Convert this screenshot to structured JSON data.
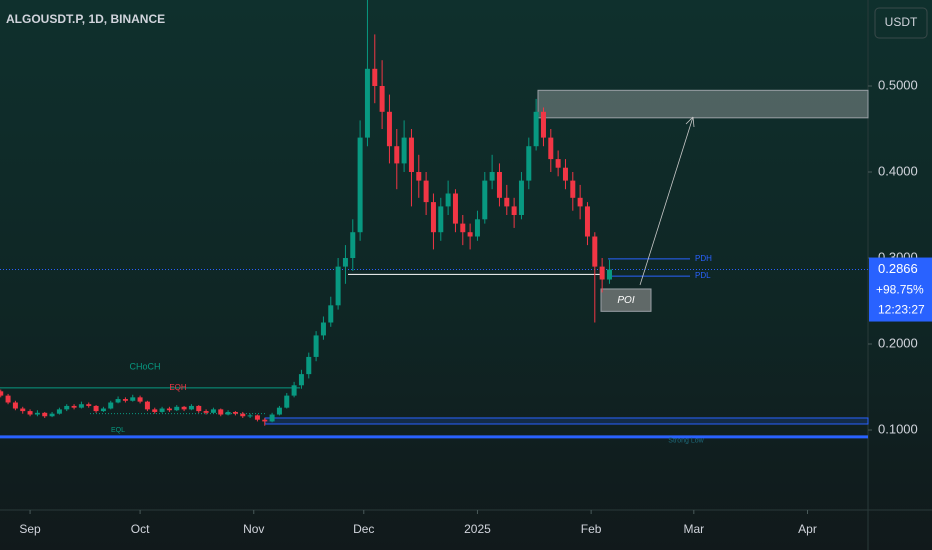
{
  "chart_data": {
    "type": "candlestick",
    "title": "ALGOUSDT.P, 1D, BINANCE",
    "currency": "USDT",
    "up_color": "#089981",
    "down_color": "#f23645",
    "xlim": [
      -8.2,
      228.5
    ],
    "xticks": [
      {
        "value": 0,
        "label": "Sep"
      },
      {
        "value": 30,
        "label": "Oct"
      },
      {
        "value": 61,
        "label": "Nov"
      },
      {
        "value": 91,
        "label": "Dec"
      },
      {
        "value": 122,
        "label": "2025"
      },
      {
        "value": 153,
        "label": "Feb"
      },
      {
        "value": 181,
        "label": "Mar"
      },
      {
        "value": 212,
        "label": "Apr"
      }
    ],
    "ylim": [
      0.007,
      0.6
    ],
    "yticks": [
      {
        "value": 0.1,
        "label": "0.1000"
      },
      {
        "value": 0.2,
        "label": "0.2000"
      },
      {
        "value": 0.3,
        "label": "0.3000"
      },
      {
        "value": 0.4,
        "label": "0.4000"
      },
      {
        "value": 0.5,
        "label": "0.5000"
      }
    ],
    "last_price": {
      "value": 0.2866,
      "label": "0.2866",
      "change": {
        "value": 98.75,
        "label": "+98.75%"
      },
      "countdown": "12:23:27"
    },
    "candles": {
      "x": [
        -8,
        -6,
        -4,
        -2,
        0,
        2,
        4,
        6,
        8,
        10,
        12,
        14,
        16,
        18,
        20,
        22,
        24,
        26,
        28,
        30,
        32,
        34,
        36,
        38,
        40,
        42,
        44,
        46,
        48,
        50,
        52,
        54,
        56,
        58,
        60,
        62,
        64,
        66,
        68,
        70,
        72,
        74,
        76,
        78,
        80,
        82,
        84,
        86,
        88,
        90,
        92,
        94,
        96,
        98,
        100,
        102,
        104,
        106,
        108,
        110,
        112,
        114,
        116,
        118,
        120,
        122,
        124,
        126,
        128,
        130,
        132,
        134,
        136,
        138,
        140,
        142,
        144,
        146,
        148,
        150,
        152,
        154,
        156,
        158
      ],
      "open": [
        0.145,
        0.14,
        0.132,
        0.125,
        0.122,
        0.118,
        0.12,
        0.116,
        0.119,
        0.124,
        0.128,
        0.126,
        0.13,
        0.128,
        0.122,
        0.125,
        0.132,
        0.136,
        0.134,
        0.138,
        0.133,
        0.124,
        0.121,
        0.125,
        0.123,
        0.127,
        0.124,
        0.128,
        0.122,
        0.12,
        0.124,
        0.118,
        0.121,
        0.119,
        0.116,
        0.117,
        0.112,
        0.11,
        0.118,
        0.126,
        0.14,
        0.152,
        0.165,
        0.185,
        0.21,
        0.225,
        0.245,
        0.29,
        0.3,
        0.33,
        0.44,
        0.52,
        0.5,
        0.47,
        0.43,
        0.41,
        0.44,
        0.4,
        0.39,
        0.365,
        0.33,
        0.36,
        0.375,
        0.34,
        0.33,
        0.325,
        0.345,
        0.39,
        0.4,
        0.37,
        0.36,
        0.35,
        0.39,
        0.43,
        0.47,
        0.44,
        0.415,
        0.405,
        0.39,
        0.37,
        0.36,
        0.325,
        0.29,
        0.275
      ],
      "high": [
        0.147,
        0.142,
        0.134,
        0.127,
        0.124,
        0.123,
        0.121,
        0.121,
        0.126,
        0.13,
        0.13,
        0.133,
        0.132,
        0.129,
        0.127,
        0.134,
        0.139,
        0.138,
        0.141,
        0.14,
        0.134,
        0.126,
        0.127,
        0.127,
        0.129,
        0.128,
        0.13,
        0.129,
        0.124,
        0.126,
        0.125,
        0.123,
        0.122,
        0.121,
        0.119,
        0.118,
        0.114,
        0.12,
        0.128,
        0.143,
        0.156,
        0.17,
        0.19,
        0.215,
        0.232,
        0.255,
        0.3,
        0.315,
        0.345,
        0.46,
        0.6,
        0.56,
        0.53,
        0.49,
        0.45,
        0.46,
        0.45,
        0.42,
        0.4,
        0.375,
        0.37,
        0.39,
        0.38,
        0.35,
        0.34,
        0.355,
        0.4,
        0.42,
        0.41,
        0.385,
        0.37,
        0.4,
        0.44,
        0.485,
        0.475,
        0.45,
        0.425,
        0.415,
        0.4,
        0.385,
        0.365,
        0.33,
        0.3,
        0.298
      ],
      "low": [
        0.138,
        0.13,
        0.123,
        0.119,
        0.116,
        0.116,
        0.114,
        0.115,
        0.118,
        0.122,
        0.124,
        0.125,
        0.126,
        0.12,
        0.121,
        0.124,
        0.131,
        0.132,
        0.133,
        0.131,
        0.122,
        0.119,
        0.12,
        0.121,
        0.122,
        0.122,
        0.123,
        0.12,
        0.118,
        0.119,
        0.116,
        0.117,
        0.117,
        0.114,
        0.114,
        0.11,
        0.105,
        0.109,
        0.117,
        0.125,
        0.138,
        0.148,
        0.16,
        0.18,
        0.205,
        0.22,
        0.24,
        0.27,
        0.285,
        0.32,
        0.43,
        0.48,
        0.45,
        0.41,
        0.38,
        0.4,
        0.36,
        0.37,
        0.35,
        0.31,
        0.32,
        0.35,
        0.33,
        0.315,
        0.31,
        0.32,
        0.34,
        0.38,
        0.36,
        0.35,
        0.335,
        0.345,
        0.38,
        0.425,
        0.43,
        0.4,
        0.395,
        0.38,
        0.355,
        0.345,
        0.315,
        0.225,
        0.26,
        0.27
      ],
      "close": [
        0.14,
        0.132,
        0.125,
        0.122,
        0.118,
        0.12,
        0.116,
        0.119,
        0.124,
        0.128,
        0.126,
        0.13,
        0.128,
        0.122,
        0.125,
        0.132,
        0.136,
        0.134,
        0.138,
        0.133,
        0.124,
        0.121,
        0.125,
        0.123,
        0.127,
        0.124,
        0.128,
        0.122,
        0.12,
        0.124,
        0.118,
        0.121,
        0.119,
        0.116,
        0.117,
        0.112,
        0.11,
        0.118,
        0.126,
        0.14,
        0.152,
        0.165,
        0.185,
        0.21,
        0.225,
        0.245,
        0.29,
        0.3,
        0.33,
        0.44,
        0.52,
        0.5,
        0.47,
        0.43,
        0.41,
        0.44,
        0.4,
        0.39,
        0.365,
        0.33,
        0.36,
        0.375,
        0.34,
        0.33,
        0.325,
        0.345,
        0.39,
        0.4,
        0.37,
        0.36,
        0.35,
        0.39,
        0.43,
        0.47,
        0.44,
        0.415,
        0.405,
        0.39,
        0.37,
        0.36,
        0.325,
        0.29,
        0.275,
        0.2866
      ]
    },
    "annotations": {
      "choch": "CHoCH",
      "eqh": {
        "label": "EQH",
        "price": 0.149
      },
      "eql": {
        "label": "EQL",
        "price": 0.119
      },
      "supply_zone": {
        "top": 0.495,
        "bottom": 0.463
      },
      "poi": {
        "label": "POI",
        "top": 0.264,
        "bottom": 0.238
      },
      "pdh": {
        "label": "PDH",
        "price": 0.299
      },
      "pdl": {
        "label": "PDL",
        "price": 0.279
      },
      "support_line": 0.281,
      "demand_zone": {
        "top": 0.114,
        "bottom": 0.107
      },
      "strong_low": {
        "label": "Strong Low",
        "price": 0.092
      }
    }
  }
}
